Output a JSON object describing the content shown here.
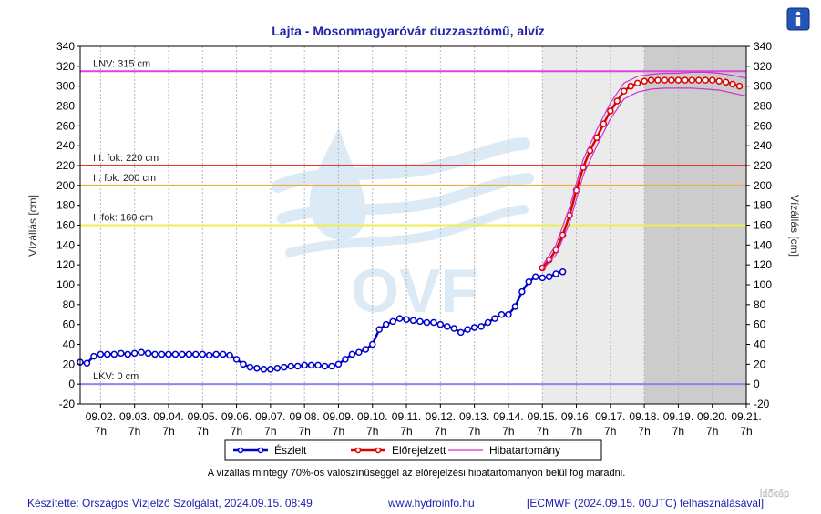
{
  "title": "Lajta - Mosonmagyaróvár duzzasztómű, alvíz",
  "info_icon": "info-icon",
  "note": "A vízállás mintegy 70%-os valószínűséggel az előrejelzési hibatartományon belül fog maradni.",
  "footer": {
    "made_by": "Készítette: Országos Vízjelző Szolgálat, 2024.09.15. 08:49",
    "url": "www.hydroinfo.hu",
    "model": "[ECMWF (2024.09.15. 00UTC) felhasználásával]"
  },
  "watermark": {
    "ovf": "OVF",
    "idokep": "időkép"
  },
  "chart_data": {
    "type": "line",
    "ylabel": "Vízállás [cm]",
    "ylabel_right": "Vízállás [cm]",
    "ylim": [
      -20,
      340
    ],
    "yticks": [
      -20,
      0,
      20,
      40,
      60,
      80,
      100,
      120,
      140,
      160,
      180,
      200,
      220,
      240,
      260,
      280,
      300,
      320,
      340
    ],
    "xlim": [
      0.4,
      20.0
    ],
    "xticks": [
      {
        "x": 1,
        "date": "09.02.",
        "time": "7h"
      },
      {
        "x": 2,
        "date": "09.03.",
        "time": "7h"
      },
      {
        "x": 3,
        "date": "09.04.",
        "time": "7h"
      },
      {
        "x": 4,
        "date": "09.05.",
        "time": "7h"
      },
      {
        "x": 5,
        "date": "09.06.",
        "time": "7h"
      },
      {
        "x": 6,
        "date": "09.07.",
        "time": "7h"
      },
      {
        "x": 7,
        "date": "09.08.",
        "time": "7h"
      },
      {
        "x": 8,
        "date": "09.09.",
        "time": "7h"
      },
      {
        "x": 9,
        "date": "09.10.",
        "time": "7h"
      },
      {
        "x": 10,
        "date": "09.11.",
        "time": "7h"
      },
      {
        "x": 11,
        "date": "09.12.",
        "time": "7h"
      },
      {
        "x": 12,
        "date": "09.13.",
        "time": "7h"
      },
      {
        "x": 13,
        "date": "09.14.",
        "time": "7h"
      },
      {
        "x": 14,
        "date": "09.15.",
        "time": "7h"
      },
      {
        "x": 15,
        "date": "09.16.",
        "time": "7h"
      },
      {
        "x": 16,
        "date": "09.17.",
        "time": "7h"
      },
      {
        "x": 17,
        "date": "09.18.",
        "time": "7h"
      },
      {
        "x": 18,
        "date": "09.19.",
        "time": "7h"
      },
      {
        "x": 19,
        "date": "09.20.",
        "time": "7h"
      },
      {
        "x": 20,
        "date": "09.21.",
        "time": "7h"
      }
    ],
    "x_unit_note": "x = 1 corresponds to 09.02. 7h; one unit per day",
    "shaded_regions": [
      {
        "from": 14.0,
        "to": 17.0,
        "color": "#ebebeb"
      },
      {
        "from": 17.0,
        "to": 20.0,
        "color": "#cccccc"
      }
    ],
    "levels": [
      {
        "label": "LNV: 315 cm",
        "value": 315,
        "color": "#dd44dd"
      },
      {
        "label": "III. fok: 220 cm",
        "value": 220,
        "color": "#ee3333"
      },
      {
        "label": "II. fok: 200 cm",
        "value": 200,
        "color": "#eeaa44"
      },
      {
        "label": "I. fok: 160 cm",
        "value": 160,
        "color": "#eeee55"
      },
      {
        "label": "LKV: 0 cm",
        "value": 0,
        "color": "#8888ee"
      }
    ],
    "legend": [
      {
        "label": "Észlelt",
        "color": "#0000cc",
        "marker": "circle"
      },
      {
        "label": "Előrejelzett",
        "color": "#dd0000",
        "marker": "circle"
      },
      {
        "label": "Hibatartomány",
        "color": "#cc33cc",
        "marker": "none"
      }
    ],
    "series": [
      {
        "name": "Észlelt",
        "color": "#0000cc",
        "points": [
          [
            0.4,
            22
          ],
          [
            0.6,
            21
          ],
          [
            0.8,
            28
          ],
          [
            1.0,
            30
          ],
          [
            1.2,
            30
          ],
          [
            1.4,
            30
          ],
          [
            1.6,
            31
          ],
          [
            1.8,
            30
          ],
          [
            2.0,
            31
          ],
          [
            2.2,
            32
          ],
          [
            2.4,
            31
          ],
          [
            2.6,
            30
          ],
          [
            2.8,
            30
          ],
          [
            3.0,
            30
          ],
          [
            3.2,
            30
          ],
          [
            3.4,
            30
          ],
          [
            3.6,
            30
          ],
          [
            3.8,
            30
          ],
          [
            4.0,
            30
          ],
          [
            4.2,
            29
          ],
          [
            4.4,
            30
          ],
          [
            4.6,
            30
          ],
          [
            4.8,
            29
          ],
          [
            5.0,
            25
          ],
          [
            5.2,
            20
          ],
          [
            5.4,
            17
          ],
          [
            5.6,
            16
          ],
          [
            5.8,
            15
          ],
          [
            6.0,
            15
          ],
          [
            6.2,
            16
          ],
          [
            6.4,
            17
          ],
          [
            6.6,
            18
          ],
          [
            6.8,
            18
          ],
          [
            7.0,
            19
          ],
          [
            7.2,
            19
          ],
          [
            7.4,
            19
          ],
          [
            7.6,
            18
          ],
          [
            7.8,
            18
          ],
          [
            8.0,
            20
          ],
          [
            8.2,
            25
          ],
          [
            8.4,
            30
          ],
          [
            8.6,
            32
          ],
          [
            8.8,
            35
          ],
          [
            9.0,
            40
          ],
          [
            9.2,
            55
          ],
          [
            9.4,
            60
          ],
          [
            9.6,
            63
          ],
          [
            9.8,
            66
          ],
          [
            10.0,
            65
          ],
          [
            10.2,
            64
          ],
          [
            10.4,
            63
          ],
          [
            10.6,
            62
          ],
          [
            10.8,
            62
          ],
          [
            11.0,
            60
          ],
          [
            11.2,
            58
          ],
          [
            11.4,
            56
          ],
          [
            11.6,
            52
          ],
          [
            11.8,
            55
          ],
          [
            12.0,
            57
          ],
          [
            12.2,
            58
          ],
          [
            12.4,
            62
          ],
          [
            12.6,
            66
          ],
          [
            12.8,
            70
          ],
          [
            13.0,
            70
          ],
          [
            13.2,
            78
          ],
          [
            13.4,
            93
          ],
          [
            13.6,
            103
          ],
          [
            13.8,
            108
          ],
          [
            14.0,
            107
          ],
          [
            14.2,
            108
          ],
          [
            14.4,
            111
          ],
          [
            14.6,
            113
          ]
        ]
      },
      {
        "name": "Előrejelzett",
        "color": "#dd0000",
        "points": [
          [
            14.0,
            117
          ],
          [
            14.2,
            125
          ],
          [
            14.4,
            135
          ],
          [
            14.6,
            150
          ],
          [
            14.8,
            170
          ],
          [
            15.0,
            195
          ],
          [
            15.2,
            218
          ],
          [
            15.4,
            235
          ],
          [
            15.6,
            248
          ],
          [
            15.8,
            262
          ],
          [
            16.0,
            275
          ],
          [
            16.2,
            285
          ],
          [
            16.4,
            295
          ],
          [
            16.6,
            300
          ],
          [
            16.8,
            303
          ],
          [
            17.0,
            305
          ],
          [
            17.2,
            306
          ],
          [
            17.4,
            306
          ],
          [
            17.6,
            306
          ],
          [
            17.8,
            306
          ],
          [
            18.0,
            306
          ],
          [
            18.2,
            306
          ],
          [
            18.4,
            306
          ],
          [
            18.6,
            306
          ],
          [
            18.8,
            306
          ],
          [
            19.0,
            306
          ],
          [
            19.2,
            305
          ],
          [
            19.4,
            304
          ],
          [
            19.6,
            302
          ],
          [
            19.8,
            300
          ]
        ]
      },
      {
        "name": "Hibatartomány felső",
        "color": "#cc33cc",
        "points": [
          [
            14.0,
            119
          ],
          [
            14.4,
            140
          ],
          [
            14.8,
            178
          ],
          [
            15.2,
            226
          ],
          [
            15.6,
            256
          ],
          [
            16.0,
            283
          ],
          [
            16.4,
            303
          ],
          [
            16.8,
            310
          ],
          [
            17.2,
            312
          ],
          [
            17.6,
            313
          ],
          [
            18.0,
            313
          ],
          [
            18.4,
            314
          ],
          [
            18.8,
            314
          ],
          [
            19.2,
            313
          ],
          [
            19.6,
            311
          ],
          [
            20.0,
            308
          ]
        ]
      },
      {
        "name": "Hibatartomány alsó",
        "color": "#cc33cc",
        "points": [
          [
            14.0,
            115
          ],
          [
            14.4,
            130
          ],
          [
            14.8,
            162
          ],
          [
            15.2,
            210
          ],
          [
            15.6,
            240
          ],
          [
            16.0,
            267
          ],
          [
            16.4,
            287
          ],
          [
            16.8,
            294
          ],
          [
            17.2,
            297
          ],
          [
            17.6,
            298
          ],
          [
            18.0,
            298
          ],
          [
            18.4,
            298
          ],
          [
            18.8,
            297
          ],
          [
            19.2,
            296
          ],
          [
            19.6,
            293
          ],
          [
            20.0,
            290
          ]
        ]
      }
    ]
  }
}
